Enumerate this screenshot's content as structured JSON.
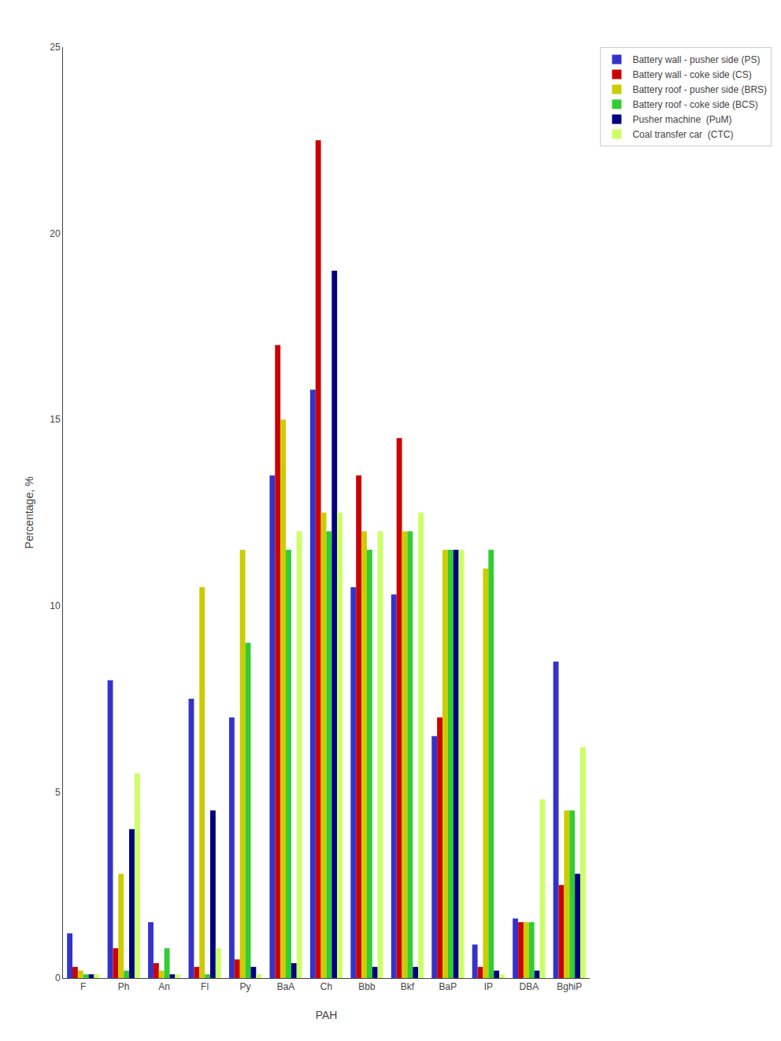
{
  "chart_data": {
    "type": "bar",
    "xlabel": "PAH",
    "ylabel": "Percentage, %",
    "categories": [
      "F",
      "Ph",
      "An",
      "Fl",
      "Py",
      "BaA",
      "Ch",
      "Bbb",
      "Bkf",
      "BaP",
      "IP",
      "DBA",
      "BghiP"
    ],
    "series": [
      {
        "name": "Battery wall - pusher side (PS)",
        "color": "#3333cc",
        "values": [
          1.2,
          8.0,
          1.5,
          7.5,
          7.0,
          13.5,
          15.8,
          10.5,
          10.3,
          6.5,
          0.9,
          1.6,
          8.5
        ]
      },
      {
        "name": "Battery wall - coke side (CS)",
        "color": "#cc0000",
        "values": [
          0.3,
          0.8,
          0.4,
          0.3,
          0.5,
          17.0,
          22.5,
          13.5,
          14.5,
          7.0,
          0.3,
          1.5,
          2.5
        ]
      },
      {
        "name": "Battery roof - pusher side (BRS)",
        "color": "#cccc00",
        "values": [
          0.2,
          2.8,
          0.2,
          10.5,
          11.5,
          15.0,
          12.5,
          12.0,
          12.0,
          11.5,
          11.0,
          1.5,
          4.5
        ]
      },
      {
        "name": "Battery roof - coke side (BCS)",
        "color": "#33cc33",
        "values": [
          0.1,
          0.2,
          0.8,
          0.1,
          9.0,
          11.5,
          12.0,
          11.5,
          12.0,
          11.5,
          11.5,
          1.5,
          4.5
        ]
      },
      {
        "name": "Pusher machine  (PuM)",
        "color": "#000080",
        "values": [
          0.1,
          4.0,
          0.1,
          4.5,
          0.3,
          0.4,
          19.0,
          0.3,
          0.3,
          11.5,
          0.2,
          0.2,
          2.8
        ]
      },
      {
        "name": "Coal transfer car  (CTC)",
        "color": "#ccff66",
        "values": [
          0.1,
          5.5,
          0.1,
          0.8,
          0.1,
          12.0,
          12.5,
          12.0,
          12.5,
          11.5,
          0.1,
          4.8,
          6.2
        ]
      }
    ],
    "ylim": [
      0,
      25
    ],
    "yticks": [
      0,
      5,
      10,
      15,
      20,
      25
    ],
    "grid": false,
    "legend": "upper right"
  }
}
